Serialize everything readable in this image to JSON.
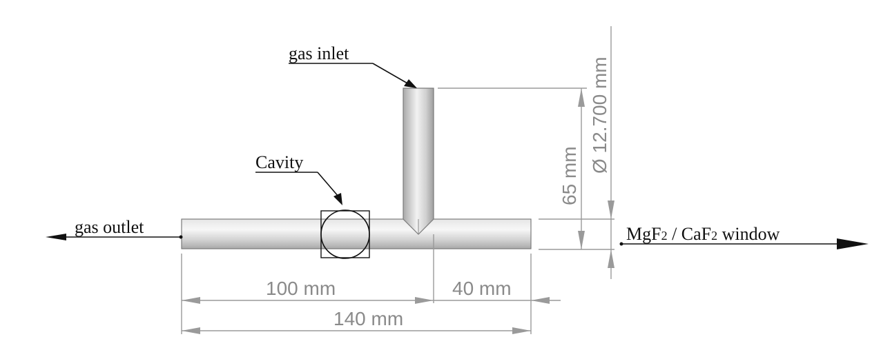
{
  "labels": {
    "gas_inlet": "gas inlet",
    "cavity": "Cavity",
    "gas_outlet": "gas outlet",
    "window_part1": "MgF",
    "window_sub1": "2",
    "window_part2": " / CaF",
    "window_sub2": "2",
    "window_part3": " window"
  },
  "dimensions": {
    "d100": "100 mm",
    "d40": "40 mm",
    "d140": "140 mm",
    "d65": "65 mm",
    "diameter": "Ø 12.700 mm"
  },
  "colors": {
    "tube_light": "#f2f2f2",
    "tube_mid": "#cfcfcf",
    "tube_dark": "#9e9e9e",
    "dimension": "#9a9a9a",
    "text": "#111111"
  }
}
